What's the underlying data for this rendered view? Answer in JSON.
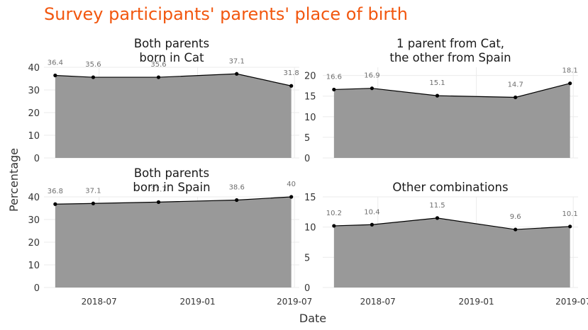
{
  "title": "Survey participants' parents' place of birth",
  "chart_data": {
    "type": "area",
    "xlabel": "Date",
    "ylabel": "Percentage",
    "x": [
      "2018-04-10",
      "2018-06-20",
      "2018-10-20",
      "2019-03-15",
      "2019-06-25"
    ],
    "x_ticks": [
      "2018-07",
      "2019-01",
      "2019-07"
    ],
    "x_tick_dates": [
      "2018-07-01",
      "2019-01-01",
      "2019-07-01"
    ],
    "x_range": [
      "2018-03-20",
      "2019-07-10"
    ],
    "grid": true,
    "fill_color": "#999999",
    "title_color": "#f2570f",
    "panels": [
      {
        "title": "Both parents\nborn in Cat",
        "values": [
          36.4,
          35.6,
          35.6,
          37.1,
          31.8
        ],
        "labels": [
          "36.4",
          "35.6",
          "35.6",
          "37.1",
          "31.8"
        ],
        "ylim": [
          0,
          40
        ],
        "y_ticks": [
          0,
          10,
          20,
          30,
          40
        ],
        "y_axis": "left"
      },
      {
        "title": "1 parent from Cat,\nthe other from Spain",
        "values": [
          16.6,
          16.9,
          15.1,
          14.7,
          18.1
        ],
        "labels": [
          "16.6",
          "16.9",
          "15.1",
          "14.7",
          "18.1"
        ],
        "ylim": [
          0,
          22
        ],
        "y_ticks": [
          0,
          5,
          10,
          15,
          20
        ],
        "y_axis": "left"
      },
      {
        "title": "Both parents\nborn in Spain",
        "values": [
          36.8,
          37.1,
          37.7,
          38.6,
          40
        ],
        "labels": [
          "36.8",
          "37.1",
          "37.7",
          "38.6",
          "40"
        ],
        "ylim": [
          0,
          40
        ],
        "y_ticks": [
          0,
          10,
          20,
          30,
          40
        ],
        "y_axis": "left"
      },
      {
        "title": "Other combinations",
        "values": [
          10.2,
          10.4,
          11.5,
          9.6,
          10.1
        ],
        "labels": [
          "10.2",
          "10.4",
          "11.5",
          "9.6",
          "10.1"
        ],
        "ylim": [
          0,
          15
        ],
        "y_ticks": [
          0,
          5,
          10,
          15
        ],
        "y_axis": "left"
      }
    ]
  }
}
